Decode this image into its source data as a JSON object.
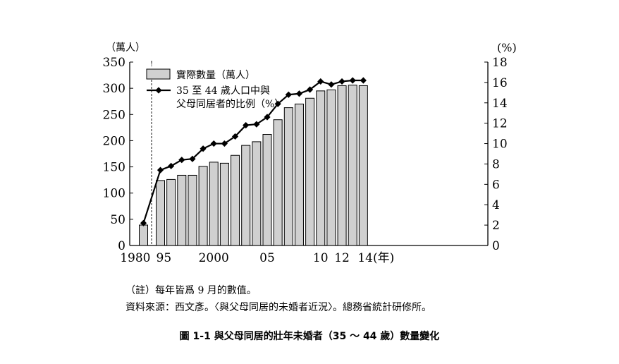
{
  "chart_data": {
    "type": "bar+line",
    "title": "",
    "categories": [
      "1980",
      "1995",
      "1996",
      "1997",
      "1998",
      "1999",
      "2000",
      "2001",
      "2002",
      "2003",
      "2004",
      "2005",
      "2006",
      "2007",
      "2008",
      "2009",
      "2010",
      "2011",
      "2012",
      "2013",
      "2014"
    ],
    "x_tick_labels": [
      {
        "category": "1980",
        "text": "1980"
      },
      {
        "category": "1995",
        "text": "95"
      },
      {
        "category": "2000",
        "text": "2000"
      },
      {
        "category": "2005",
        "text": "05"
      },
      {
        "category": "2010",
        "text": "10"
      },
      {
        "category": "2012",
        "text": "12"
      },
      {
        "category": "2014",
        "text": "14(年)"
      }
    ],
    "series": [
      {
        "name": "實際數量（萬人）",
        "type": "bar",
        "axis": "left",
        "values": [
          39,
          124,
          126,
          134,
          134,
          151,
          159,
          157,
          172,
          191,
          198,
          212,
          240,
          263,
          270,
          281,
          295,
          297,
          305,
          306,
          305
        ]
      },
      {
        "name": "35 至 44 歲人口中與父母同居者的比例（%）",
        "name_lines": [
          "35 至 44 歲人口中與",
          "父母同居者的比例（%）"
        ],
        "type": "line",
        "axis": "right",
        "values": [
          2.2,
          7.4,
          7.8,
          8.4,
          8.5,
          9.5,
          10.0,
          10.0,
          10.7,
          11.8,
          11.9,
          12.6,
          13.9,
          14.8,
          14.9,
          15.3,
          16.1,
          15.8,
          16.1,
          16.2,
          16.2
        ]
      }
    ],
    "left_axis": {
      "unit_label": "（萬人）",
      "range": [
        0,
        350
      ],
      "ticks": [
        "0",
        "50",
        "100",
        "150",
        "200",
        "250",
        "300",
        "350"
      ]
    },
    "right_axis": {
      "unit_label": "(%)",
      "range": [
        0,
        18
      ],
      "ticks": [
        "0",
        "2",
        "4",
        "6",
        "8",
        "10",
        "12",
        "14",
        "16",
        "18"
      ]
    },
    "axis_break_marker": "!",
    "legend_position": "top-left",
    "colors": {
      "bar_fill": "#d0d0d0",
      "bar_stroke": "#000000",
      "line": "#000000"
    }
  },
  "notes": {
    "note1": "（註）每年皆爲 9 月的數值。",
    "note2": "資料來源：西文彥。〈與父母同居的未婚者近況〉。總務省統計研修所。"
  },
  "caption": "圖 1-1  與父母同居的壯年未婚者（35 ～ 44 歲）數量變化"
}
